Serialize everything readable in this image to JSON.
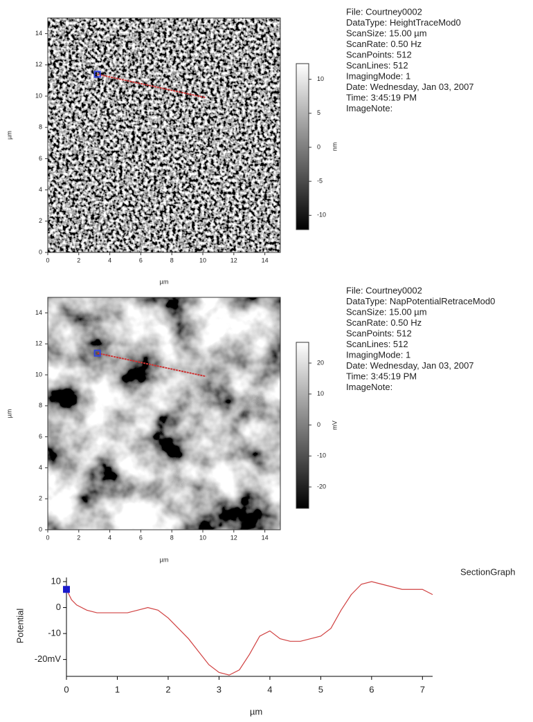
{
  "chart_data": [
    {
      "type": "image",
      "xlabel": "µm",
      "ylabel": "µm",
      "xlim": [
        0,
        15
      ],
      "ylim": [
        0,
        15
      ],
      "xticks": [
        0,
        2,
        4,
        6,
        8,
        10,
        12,
        14
      ],
      "yticks": [
        0,
        2,
        4,
        6,
        8,
        10,
        12,
        14
      ],
      "colorbar": {
        "lim": [
          -12.1,
          12.3
        ],
        "ticks": [
          10,
          5,
          0,
          -5,
          -10
        ],
        "label": "nm"
      },
      "section_line": {
        "x": [
          3.2,
          10.2
        ],
        "y": [
          11.4,
          9.9
        ],
        "color": "#cc3333"
      },
      "info": [
        "File: Courtney0002",
        "DataType: HeightTraceMod0",
        "ScanSize: 15.00 µm",
        "ScanRate: 0.50 Hz",
        "ScanPoints: 512",
        "ScanLines: 512",
        "ImagingMode:  1",
        "Date:  Wednesday, Jan 03, 2007",
        "Time:  3:45:19 PM",
        "ImageNote:"
      ]
    },
    {
      "type": "image",
      "xlabel": "µm",
      "ylabel": "µm",
      "xlim": [
        0,
        15
      ],
      "ylim": [
        0,
        15
      ],
      "xticks": [
        0,
        2,
        4,
        6,
        8,
        10,
        12,
        14
      ],
      "yticks": [
        0,
        2,
        4,
        6,
        8,
        10,
        12,
        14
      ],
      "colorbar": {
        "lim": [
          -26.9,
          26.7
        ],
        "ticks": [
          20,
          10,
          0,
          -10,
          -20
        ],
        "label": "mV"
      },
      "section_line": {
        "x": [
          3.2,
          10.2
        ],
        "y": [
          11.4,
          9.9
        ],
        "color": "#cc3333"
      },
      "info": [
        "File: Courtney0002",
        "DataType: NapPotentialRetraceMod0",
        "ScanSize: 15.00 µm",
        "ScanRate: 0.50 Hz",
        "ScanPoints: 512",
        "ScanLines: 512",
        "ImagingMode:  1",
        "Date:  Wednesday, Jan 03, 2007",
        "Time:  3:45:19 PM",
        "ImageNote:"
      ]
    },
    {
      "type": "line",
      "title": "SectionGraph",
      "xlabel": "µm",
      "ylabel": "Potential",
      "xlim": [
        0,
        7.2
      ],
      "ylim": [
        -26.5,
        11.6
      ],
      "xticks": [
        0,
        1,
        2,
        3,
        4,
        5,
        6,
        7
      ],
      "yticks": [
        10,
        0,
        -10,
        {
          "value": -20,
          "label": "-20mV"
        }
      ],
      "color": "#d04040",
      "marker_color": "#1a1acc",
      "x": [
        0,
        0.1,
        0.2,
        0.4,
        0.6,
        0.8,
        1.0,
        1.2,
        1.4,
        1.6,
        1.8,
        2.0,
        2.2,
        2.4,
        2.6,
        2.8,
        3.0,
        3.2,
        3.4,
        3.6,
        3.8,
        4.0,
        4.2,
        4.4,
        4.6,
        4.8,
        5.0,
        5.2,
        5.4,
        5.6,
        5.8,
        6.0,
        6.2,
        6.4,
        6.6,
        6.8,
        7.0,
        7.2
      ],
      "values": [
        7,
        3,
        1,
        -1,
        -2,
        -2,
        -2,
        -2,
        -1,
        0,
        -1,
        -4,
        -8,
        -12,
        -17,
        -22,
        -25,
        -26,
        -24,
        -18,
        -11,
        -9,
        -12,
        -13,
        -13,
        -12,
        -11,
        -8,
        -1,
        5,
        9,
        10,
        9,
        8,
        7,
        7,
        7,
        5
      ]
    }
  ]
}
